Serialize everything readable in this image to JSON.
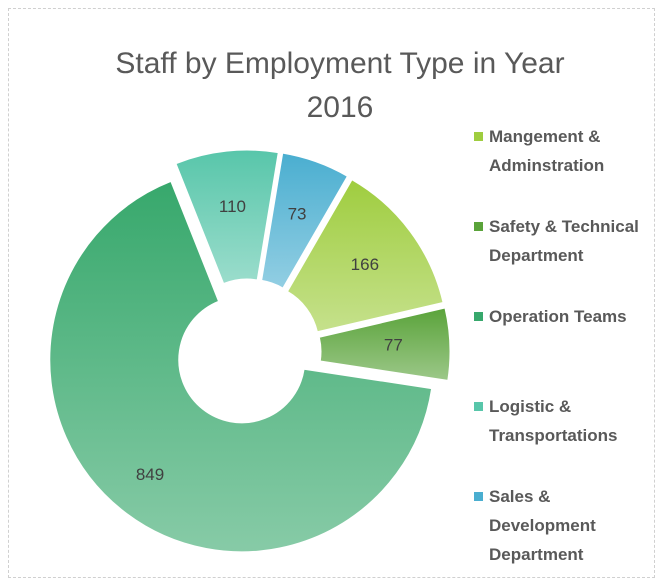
{
  "chart_data": {
    "type": "donut",
    "title": "Staff by Employment Type in Year 2016",
    "categories": [
      "Mangement & Adminstration",
      "Safety & Technical Department",
      "Operation Teams",
      "Logistic & Transportations",
      "Sales & Development Department"
    ],
    "values": [
      166,
      77,
      849,
      110,
      73
    ],
    "colors": [
      "#9fcd3f",
      "#5aa33a",
      "#37a86c",
      "#58c6aa",
      "#4aaed0"
    ],
    "legend": "right"
  }
}
